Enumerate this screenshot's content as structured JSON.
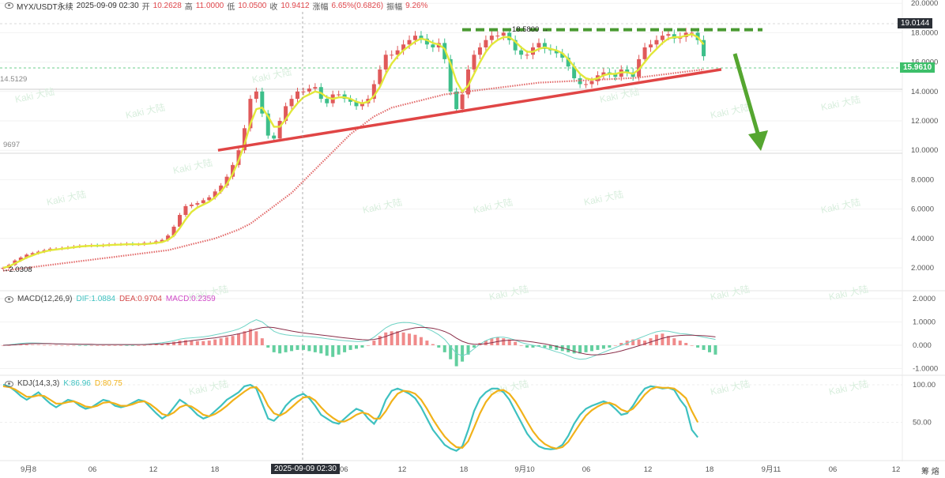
{
  "header": {
    "symbol": "MYX/USDT永续",
    "datetime": "2025-09-09 02:30",
    "open_label": "开",
    "open": "10.2628",
    "high_label": "高",
    "high": "11.0000",
    "low_label": "低",
    "low": "10.0500",
    "close_label": "收",
    "close": "10.9412",
    "change_label": "涨幅",
    "change": "6.65%(0.6826)",
    "amp_label": "振幅",
    "amp": "9.26%"
  },
  "watermark": "Kaki 大陆",
  "price_badges": {
    "top": "19.0144",
    "current": "15.9610"
  },
  "annotations": {
    "high": "18.5800",
    "low": "2.0308",
    "left_a": "14.5129",
    "left_b": "9697"
  },
  "crosshair_time": "2025-09-09 02:30",
  "macd": {
    "title": "MACD(12,26,9)",
    "dif": "DIF:1.0884",
    "dea": "DEA:0.9704",
    "macd": "MACD:0.2359"
  },
  "kdj": {
    "title": "KDJ(14,3,3)",
    "k": "K:86.96",
    "d": "D:80.75"
  },
  "corner": "筹 熔",
  "colors": {
    "up": "#e05a5a",
    "down": "#3dbf8a",
    "ma_fast": "#e2e83a",
    "ma_slow": "#e26b6b",
    "trend": "#e04545",
    "resistance": "#4a9a32",
    "arrow": "#55a630",
    "kdj_k": "#3ec1c0",
    "kdj_d": "#f1b21a"
  },
  "chart_data": [
    {
      "type": "candlestick",
      "title": "",
      "y_axis_labels": [
        "20.0000",
        "18.0000",
        "16.0000",
        "14.0000",
        "12.0000",
        "10.0000",
        "8.0000",
        "6.0000",
        "4.0000",
        "2.0000"
      ],
      "y_axis_values": [
        20,
        18,
        16,
        14,
        12,
        10,
        8,
        6,
        4,
        2
      ],
      "x_axis_labels": [
        "9月8",
        "06",
        "12",
        "18",
        "06",
        "12",
        "18",
        "9月10",
        "06",
        "12",
        "18",
        "9月11",
        "06",
        "12"
      ],
      "close_series": [
        2.0,
        2.2,
        2.5,
        2.7,
        2.9,
        3.0,
        3.1,
        3.2,
        3.3,
        3.3,
        3.35,
        3.4,
        3.45,
        3.5,
        3.5,
        3.55,
        3.5,
        3.55,
        3.6,
        3.6,
        3.6,
        3.65,
        3.6,
        3.6,
        3.7,
        3.7,
        3.8,
        3.9,
        4.2,
        4.8,
        5.6,
        6.2,
        6.3,
        6.4,
        6.6,
        6.8,
        7.2,
        7.6,
        8.2,
        9.0,
        10.0,
        11.5,
        13.5,
        14.0,
        12.5,
        11.0,
        10.8,
        12.0,
        13.0,
        13.5,
        14.0,
        14.0,
        14.2,
        14.3,
        13.5,
        13.2,
        13.8,
        13.8,
        13.5,
        13.3,
        13.0,
        13.2,
        13.5,
        14.5,
        15.5,
        16.5,
        16.5,
        16.8,
        17.2,
        17.5,
        17.8,
        17.6,
        17.2,
        17.0,
        17.3,
        16.2,
        14.0,
        12.8,
        13.8,
        15.5,
        16.5,
        17.0,
        17.5,
        17.8,
        17.8,
        18.0,
        17.5,
        16.8,
        16.5,
        16.5,
        17.0,
        17.3,
        16.9,
        16.8,
        16.6,
        16.3,
        15.7,
        14.9,
        14.5,
        14.5,
        14.7,
        15.1,
        15.3,
        15.2,
        15.0,
        15.5,
        15.3,
        15.0,
        16.2,
        17.0,
        17.2,
        17.5,
        17.8,
        17.9,
        17.6,
        17.7,
        18.0,
        18.0,
        17.5,
        16.4
      ],
      "ma_fast": {
        "name": "",
        "values": [
          2.0,
          2.1,
          2.3,
          2.5,
          2.7,
          2.85,
          3.0,
          3.1,
          3.2,
          3.25,
          3.3,
          3.35,
          3.4,
          3.45,
          3.48,
          3.5,
          3.5,
          3.52,
          3.55,
          3.57,
          3.58,
          3.6,
          3.6,
          3.6,
          3.62,
          3.65,
          3.7,
          3.75,
          3.9,
          4.2,
          4.7,
          5.3,
          5.8,
          6.1,
          6.3,
          6.5,
          6.8,
          7.2,
          7.7,
          8.4,
          9.3,
          10.4,
          11.8,
          12.8,
          12.9,
          12.3,
          11.6,
          11.6,
          12.1,
          12.7,
          13.2,
          13.6,
          13.8,
          14.0,
          13.9,
          13.6,
          13.5,
          13.6,
          13.6,
          13.5,
          13.3,
          13.2,
          13.3,
          13.7,
          14.3,
          15.2,
          15.9,
          16.4,
          16.8,
          17.1,
          17.4,
          17.6,
          17.5,
          17.3,
          17.2,
          16.9,
          15.9,
          14.7,
          14.0,
          14.4,
          15.2,
          16.0,
          16.7,
          17.2,
          17.5,
          17.7,
          17.7,
          17.4,
          17.0,
          16.7,
          16.7,
          16.9,
          17.0,
          16.9,
          16.8,
          16.6,
          16.2,
          15.7,
          15.2,
          14.9,
          14.8,
          14.9,
          15.1,
          15.2,
          15.2,
          15.3,
          15.3,
          15.2,
          15.5,
          16.0,
          16.5,
          16.9,
          17.3,
          17.6,
          17.7,
          17.7,
          17.8,
          17.9,
          17.7,
          17.2
        ]
      },
      "ma_slow": {
        "name": "",
        "values": [
          1.8,
          1.85,
          1.9,
          1.95,
          2.0,
          2.05,
          2.1,
          2.15,
          2.2,
          2.25,
          2.3,
          2.35,
          2.4,
          2.45,
          2.5,
          2.55,
          2.6,
          2.65,
          2.7,
          2.75,
          2.8,
          2.85,
          2.9,
          2.95,
          3.0,
          3.05,
          3.1,
          3.15,
          3.2,
          3.3,
          3.4,
          3.5,
          3.6,
          3.7,
          3.8,
          3.9,
          4.0,
          4.15,
          4.3,
          4.45,
          4.6,
          4.8,
          5.0,
          5.3,
          5.6,
          5.9,
          6.2,
          6.5,
          6.8,
          7.1,
          7.5,
          7.9,
          8.3,
          8.7,
          9.1,
          9.5,
          9.9,
          10.3,
          10.7,
          11.1,
          11.4,
          11.7,
          12.0,
          12.3,
          12.5,
          12.7,
          12.9,
          13.0,
          13.1,
          13.2,
          13.3,
          13.4,
          13.5,
          13.6,
          13.7,
          13.8,
          13.85,
          13.9,
          13.95,
          14.0,
          14.05,
          14.1,
          14.15,
          14.2,
          14.25,
          14.3,
          14.35,
          14.4,
          14.45,
          14.5,
          14.55,
          14.6,
          14.62,
          14.64,
          14.66,
          14.68,
          14.7,
          14.72,
          14.74,
          14.76,
          14.78,
          14.8,
          14.82,
          14.84,
          14.86,
          14.88,
          14.9,
          14.92,
          14.95,
          15.0,
          15.05,
          15.1,
          15.15,
          15.2,
          15.25,
          15.3,
          15.35,
          15.4,
          15.45,
          15.5
        ]
      },
      "support_line": {
        "x0": 36.5,
        "y0": 10.0,
        "x1": 122,
        "y1": 15.5
      },
      "resistance_level": 18.2
    },
    {
      "type": "bar",
      "title": "MACD(12,26,9)",
      "y_axis_labels": [
        "2.0000",
        "1.0000",
        "0.000",
        "-1.0000"
      ],
      "y_axis_values": [
        2,
        1,
        0,
        -1
      ],
      "histogram": [
        0.0,
        0.0,
        0.02,
        0.03,
        0.03,
        0.02,
        0.02,
        0.01,
        0.01,
        0.01,
        0.0,
        0.0,
        0.0,
        -0.01,
        -0.01,
        0.0,
        0.0,
        0.0,
        0.0,
        0.0,
        0.0,
        -0.01,
        -0.01,
        0.0,
        0.0,
        0.02,
        0.04,
        0.06,
        0.1,
        0.15,
        0.2,
        0.22,
        0.2,
        0.18,
        0.18,
        0.2,
        0.25,
        0.3,
        0.35,
        0.4,
        0.5,
        0.6,
        0.7,
        0.6,
        0.3,
        -0.1,
        -0.3,
        -0.35,
        -0.3,
        -0.25,
        -0.2,
        -0.2,
        -0.25,
        -0.3,
        -0.35,
        -0.45,
        -0.5,
        -0.4,
        -0.3,
        -0.2,
        -0.15,
        -0.1,
        0.0,
        0.2,
        0.4,
        0.55,
        0.6,
        0.6,
        0.55,
        0.5,
        0.45,
        0.35,
        0.2,
        0.05,
        -0.1,
        -0.3,
        -0.6,
        -0.9,
        -0.7,
        -0.4,
        -0.1,
        0.1,
        0.2,
        0.3,
        0.35,
        0.3,
        0.25,
        0.15,
        0.0,
        -0.1,
        -0.1,
        -0.05,
        -0.1,
        -0.15,
        -0.2,
        -0.25,
        -0.3,
        -0.35,
        -0.35,
        -0.3,
        -0.25,
        -0.2,
        -0.15,
        -0.1,
        0.0,
        0.1,
        0.2,
        0.25,
        0.25,
        0.2,
        0.3,
        0.45,
        0.5,
        0.4,
        0.3,
        0.2,
        0.1,
        0.0,
        -0.1,
        -0.2,
        -0.3,
        -0.4
      ],
      "dif": [
        0.0,
        0.02,
        0.05,
        0.08,
        0.1,
        0.1,
        0.09,
        0.08,
        0.07,
        0.06,
        0.05,
        0.05,
        0.04,
        0.04,
        0.03,
        0.03,
        0.03,
        0.03,
        0.03,
        0.03,
        0.03,
        0.02,
        0.02,
        0.03,
        0.04,
        0.06,
        0.08,
        0.11,
        0.15,
        0.2,
        0.26,
        0.3,
        0.32,
        0.34,
        0.36,
        0.4,
        0.45,
        0.5,
        0.56,
        0.62,
        0.7,
        0.82,
        0.98,
        1.1,
        1.0,
        0.8,
        0.6,
        0.5,
        0.45,
        0.42,
        0.4,
        0.38,
        0.37,
        0.35,
        0.32,
        0.28,
        0.25,
        0.22,
        0.2,
        0.18,
        0.16,
        0.16,
        0.2,
        0.35,
        0.55,
        0.75,
        0.88,
        0.95,
        0.98,
        0.97,
        0.93,
        0.85,
        0.72,
        0.6,
        0.45,
        0.25,
        -0.05,
        -0.35,
        -0.45,
        -0.35,
        -0.15,
        0.05,
        0.2,
        0.3,
        0.35,
        0.35,
        0.3,
        0.22,
        0.12,
        0.05,
        0.0,
        -0.05,
        -0.12,
        -0.2,
        -0.28,
        -0.35,
        -0.45,
        -0.55,
        -0.6,
        -0.58,
        -0.5,
        -0.4,
        -0.3,
        -0.2,
        -0.1,
        0.0,
        0.1,
        0.2,
        0.3,
        0.4,
        0.5,
        0.58,
        0.62,
        0.6,
        0.55,
        0.5,
        0.48,
        0.45,
        0.4,
        0.35,
        0.3,
        0.25
      ],
      "dea": [
        0.0,
        0.01,
        0.02,
        0.04,
        0.06,
        0.07,
        0.07,
        0.07,
        0.07,
        0.06,
        0.06,
        0.05,
        0.05,
        0.04,
        0.04,
        0.04,
        0.03,
        0.03,
        0.03,
        0.03,
        0.03,
        0.03,
        0.03,
        0.03,
        0.03,
        0.04,
        0.05,
        0.06,
        0.08,
        0.1,
        0.13,
        0.16,
        0.2,
        0.23,
        0.26,
        0.29,
        0.32,
        0.36,
        0.4,
        0.44,
        0.49,
        0.55,
        0.62,
        0.7,
        0.76,
        0.78,
        0.76,
        0.71,
        0.66,
        0.61,
        0.57,
        0.53,
        0.5,
        0.47,
        0.44,
        0.41,
        0.38,
        0.35,
        0.32,
        0.29,
        0.26,
        0.24,
        0.23,
        0.25,
        0.3,
        0.38,
        0.47,
        0.56,
        0.64,
        0.7,
        0.75,
        0.77,
        0.76,
        0.73,
        0.67,
        0.59,
        0.47,
        0.31,
        0.17,
        0.08,
        0.04,
        0.04,
        0.07,
        0.11,
        0.16,
        0.2,
        0.22,
        0.22,
        0.2,
        0.17,
        0.14,
        0.1,
        0.06,
        0.01,
        -0.05,
        -0.11,
        -0.18,
        -0.26,
        -0.33,
        -0.38,
        -0.41,
        -0.41,
        -0.39,
        -0.35,
        -0.3,
        -0.24,
        -0.17,
        -0.1,
        -0.02,
        0.06,
        0.14,
        0.22,
        0.3,
        0.36,
        0.4,
        0.42,
        0.43,
        0.43,
        0.42,
        0.41,
        0.39,
        0.36
      ]
    },
    {
      "type": "line",
      "title": "KDJ(14,3,3)",
      "y_axis_labels": [
        "100.00",
        "50.00"
      ],
      "y_axis_values": [
        100,
        50
      ],
      "k": [
        100,
        98,
        92,
        85,
        80,
        85,
        90,
        82,
        75,
        70,
        75,
        80,
        78,
        72,
        68,
        70,
        75,
        80,
        78,
        72,
        70,
        72,
        76,
        80,
        78,
        70,
        62,
        55,
        60,
        70,
        80,
        75,
        68,
        60,
        55,
        58,
        65,
        72,
        80,
        85,
        90,
        98,
        100,
        95,
        75,
        55,
        52,
        60,
        72,
        80,
        85,
        88,
        82,
        72,
        60,
        55,
        50,
        48,
        55,
        62,
        68,
        65,
        55,
        48,
        60,
        80,
        92,
        95,
        92,
        88,
        82,
        70,
        55,
        40,
        30,
        20,
        15,
        12,
        18,
        40,
        65,
        82,
        90,
        95,
        95,
        90,
        80,
        65,
        50,
        35,
        25,
        18,
        15,
        14,
        15,
        20,
        32,
        48,
        60,
        68,
        72,
        75,
        78,
        75,
        68,
        60,
        62,
        72,
        85,
        95,
        98,
        97,
        95,
        96,
        93,
        80,
        70,
        40,
        30
      ],
      "d": [
        98,
        97,
        94,
        89,
        84,
        84,
        86,
        85,
        80,
        75,
        75,
        77,
        78,
        75,
        71,
        70,
        72,
        76,
        77,
        75,
        72,
        72,
        74,
        77,
        78,
        74,
        68,
        61,
        59,
        63,
        70,
        73,
        71,
        66,
        60,
        58,
        61,
        66,
        72,
        79,
        85,
        91,
        96,
        97,
        88,
        72,
        62,
        59,
        63,
        70,
        77,
        83,
        84,
        79,
        70,
        62,
        56,
        51,
        51,
        55,
        60,
        63,
        61,
        55,
        55,
        65,
        78,
        88,
        92,
        91,
        88,
        80,
        68,
        54,
        42,
        31,
        23,
        17,
        16,
        25,
        43,
        62,
        77,
        87,
        92,
        93,
        88,
        78,
        65,
        51,
        38,
        28,
        21,
        17,
        15,
        17,
        24,
        36,
        48,
        59,
        66,
        71,
        75,
        76,
        73,
        67,
        64,
        68,
        77,
        87,
        94,
        97,
        96,
        96,
        95,
        89,
        82,
        65,
        50
      ]
    }
  ]
}
